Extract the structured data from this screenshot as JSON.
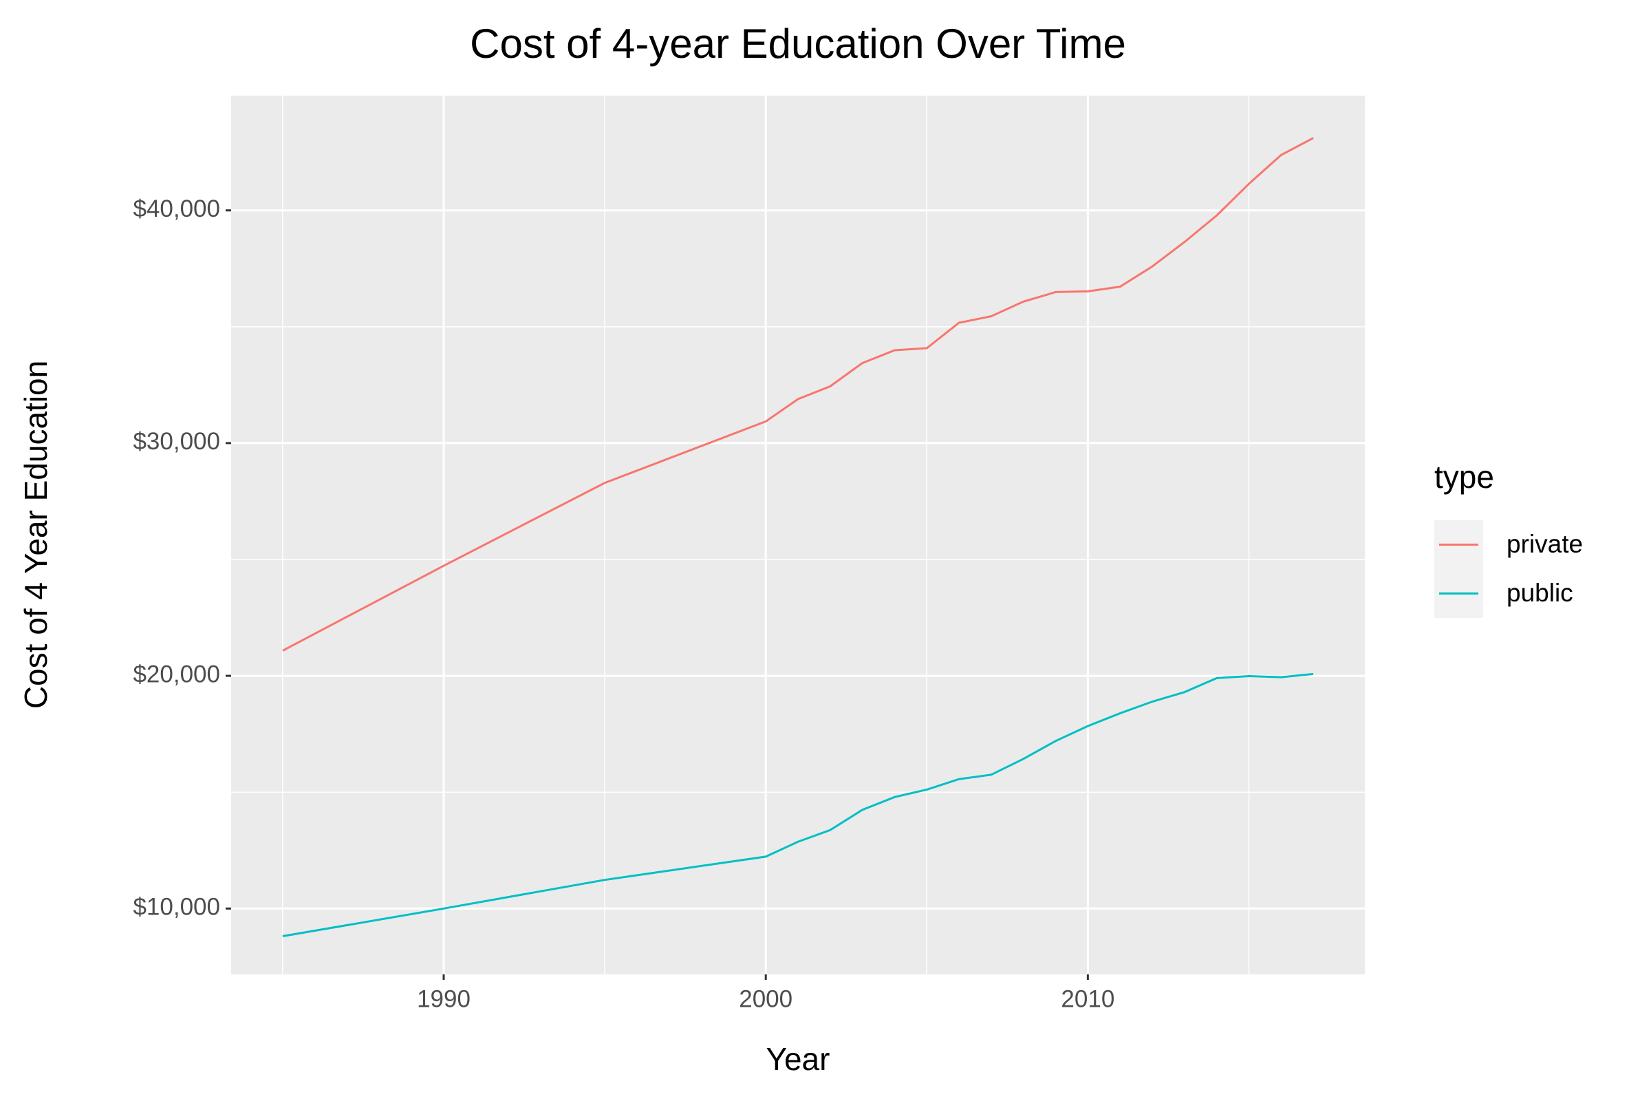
{
  "chart_data": {
    "type": "line",
    "title": "Cost of 4-year Education Over Time",
    "x_label": "Year",
    "y_label": "Cost of 4 Year Education",
    "legend_title": "type",
    "legend_position": "right",
    "grid": true,
    "x": [
      1985,
      1990,
      1995,
      2000,
      2001,
      2002,
      2003,
      2004,
      2005,
      2006,
      2007,
      2008,
      2009,
      2010,
      2011,
      2012,
      2013,
      2014,
      2015,
      2016,
      2017
    ],
    "series": [
      {
        "name": "private",
        "color": "#F8766D",
        "values": [
          21080,
          24730,
          28290,
          30930,
          31890,
          32440,
          33440,
          33990,
          34080,
          35170,
          35450,
          36080,
          36490,
          36520,
          36720,
          37590,
          38640,
          39780,
          41140,
          42380,
          43110
        ]
      },
      {
        "name": "public",
        "color": "#00BFC4",
        "values": [
          8810,
          10000,
          11230,
          12230,
          12870,
          13370,
          14240,
          14790,
          15110,
          15560,
          15750,
          16430,
          17200,
          17840,
          18390,
          18890,
          19300,
          19900,
          19990,
          19940,
          20080
        ]
      }
    ],
    "xlim": [
      1983.4,
      2018.6
    ],
    "xticks": [
      1990,
      2000,
      2010
    ],
    "ylim": [
      7170,
      44930
    ],
    "yticks": [
      {
        "value": 10000,
        "label": "$10,000"
      },
      {
        "value": 20000,
        "label": "$20,000"
      },
      {
        "value": 30000,
        "label": "$30,000"
      },
      {
        "value": 40000,
        "label": "$40,000"
      }
    ]
  }
}
